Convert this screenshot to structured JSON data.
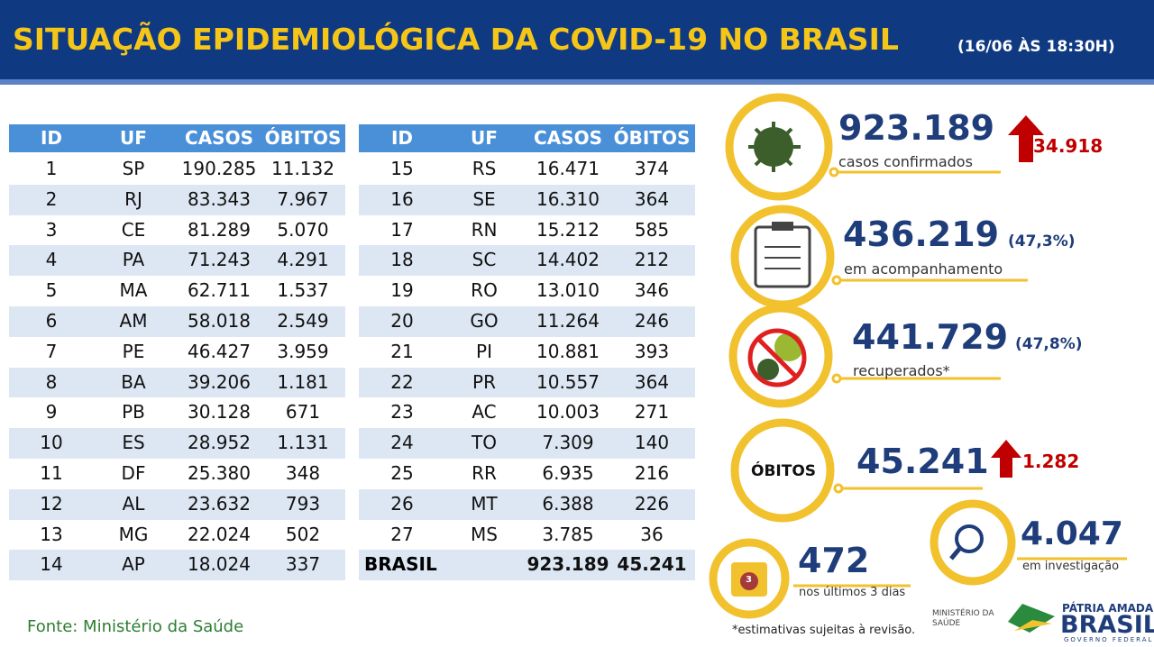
{
  "header": {
    "title": "SITUAÇÃO EPIDEMIOLÓGICA DA COVID-19 NO BRASIL",
    "subtitle": "(16/06 ÀS 18:30H)"
  },
  "tables": [
    {
      "columns": [
        "ID",
        "UF",
        "CASOS",
        "ÓBITOS"
      ],
      "rows": [
        [
          "1",
          "SP",
          "190.285",
          "11.132"
        ],
        [
          "2",
          "RJ",
          "83.343",
          "7.967"
        ],
        [
          "3",
          "CE",
          "81.289",
          "5.070"
        ],
        [
          "4",
          "PA",
          "71.243",
          "4.291"
        ],
        [
          "5",
          "MA",
          "62.711",
          "1.537"
        ],
        [
          "6",
          "AM",
          "58.018",
          "2.549"
        ],
        [
          "7",
          "PE",
          "46.427",
          "3.959"
        ],
        [
          "8",
          "BA",
          "39.206",
          "1.181"
        ],
        [
          "9",
          "PB",
          "30.128",
          "671"
        ],
        [
          "10",
          "ES",
          "28.952",
          "1.131"
        ],
        [
          "11",
          "DF",
          "25.380",
          "348"
        ],
        [
          "12",
          "AL",
          "23.632",
          "793"
        ],
        [
          "13",
          "MG",
          "22.024",
          "502"
        ],
        [
          "14",
          "AP",
          "18.024",
          "337"
        ]
      ]
    },
    {
      "columns": [
        "ID",
        "UF",
        "CASOS",
        "ÓBITOS"
      ],
      "rows": [
        [
          "15",
          "RS",
          "16.471",
          "374"
        ],
        [
          "16",
          "SE",
          "16.310",
          "364"
        ],
        [
          "17",
          "RN",
          "15.212",
          "585"
        ],
        [
          "18",
          "SC",
          "14.402",
          "212"
        ],
        [
          "19",
          "RO",
          "13.010",
          "346"
        ],
        [
          "20",
          "GO",
          "11.264",
          "246"
        ],
        [
          "21",
          "PI",
          "10.881",
          "393"
        ],
        [
          "22",
          "PR",
          "10.557",
          "364"
        ],
        [
          "23",
          "AC",
          "10.003",
          "271"
        ],
        [
          "24",
          "TO",
          "7.309",
          "140"
        ],
        [
          "25",
          "RR",
          "6.935",
          "216"
        ],
        [
          "26",
          "MT",
          "6.388",
          "226"
        ],
        [
          "27",
          "MS",
          "3.785",
          "36"
        ]
      ],
      "total": [
        "BRASIL",
        "923.189",
        "45.241"
      ]
    }
  ],
  "stats": {
    "confirmed": {
      "value": "923.189",
      "label": "casos confirmados",
      "increase": "34.918"
    },
    "monitoring": {
      "value": "436.219",
      "percent": "(47,3%)",
      "label": "em acompanhamento"
    },
    "recovered": {
      "value": "441.729",
      "percent": "(47,8%)",
      "label": "recuperados*"
    },
    "deaths": {
      "label": "ÓBITOS",
      "value": "45.241",
      "increase": "1.282"
    },
    "investigation": {
      "value": "4.047",
      "label": "em investigação"
    },
    "last3days": {
      "icon": "3",
      "value": "472",
      "label": "nos últimos 3 dias"
    }
  },
  "footer": {
    "source": "Fonte: Ministério da Saúde",
    "note": "*estimativas sujeitas à revisão.",
    "ministry": [
      "MINISTÉRIO DA",
      "SAÚDE"
    ],
    "brand": [
      "PÁTRIA AMADA",
      "BRASIL",
      "GOVERNO FEDERAL"
    ]
  }
}
